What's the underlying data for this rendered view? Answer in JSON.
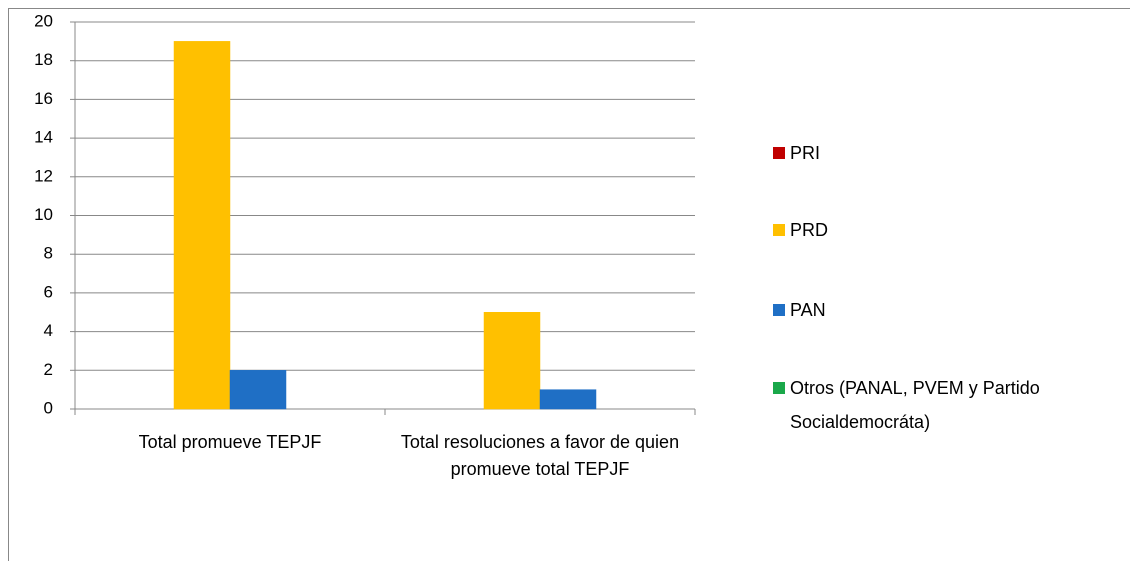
{
  "chart_data": {
    "type": "bar",
    "categories": [
      "Total promueve TEPJF",
      "Total resoluciones a favor de quien promueve total TEPJF"
    ],
    "series": [
      {
        "name": "PRI",
        "color": "#c00000",
        "values": [
          0,
          0
        ]
      },
      {
        "name": "PRD",
        "color": "#ffc000",
        "values": [
          19,
          5
        ]
      },
      {
        "name": "PAN",
        "color": "#1f6fc5",
        "values": [
          2,
          1
        ]
      },
      {
        "name": "Otros (PANAL, PVEM y Partido Socialdemocráta)",
        "color": "#1aa84a",
        "values": [
          0,
          0
        ]
      }
    ],
    "ylim": [
      0,
      20
    ],
    "yticks": [
      0,
      2,
      4,
      6,
      8,
      10,
      12,
      14,
      16,
      18,
      20
    ],
    "grid": true,
    "legend": "right"
  }
}
